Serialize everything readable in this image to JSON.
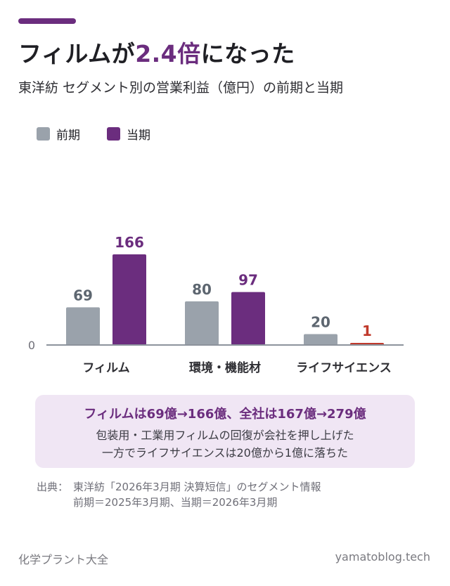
{
  "header": {
    "title_before": "フィルムが",
    "title_highlight": "2.4倍",
    "title_after": "になった",
    "subtitle": "東洋紡 セグメント別の営業利益（億円）の前期と当期"
  },
  "colors": {
    "prev": "#9aa2ab",
    "curr": "#6b2d7e",
    "negative_small": "#c0392b",
    "accent": "#6b2d7e",
    "note_bg": "#f0e6f4"
  },
  "chart_data": {
    "type": "bar",
    "title": "フィルムが2.4倍になった",
    "subtitle": "東洋紡 セグメント別の営業利益（億円）の前期と当期",
    "categories": [
      "フィルム",
      "環境・機能材",
      "ライフサイエンス"
    ],
    "series": [
      {
        "name": "前期",
        "values": [
          69,
          80,
          20
        ]
      },
      {
        "name": "当期",
        "values": [
          166,
          97,
          1
        ]
      }
    ],
    "y_zero_label": "0",
    "ylim": [
      0,
      166
    ],
    "grid": false,
    "legend": "top-left"
  },
  "note": {
    "headline": "フィルムは69億→166億、全社は167億→279億",
    "line1": "包装用・工業用フィルムの回復が会社を押し上げた",
    "line2": "一方でライフサイエンスは20億から1億に落ちた"
  },
  "source": {
    "label": "出典：",
    "line1": "東洋紡「2026年3月期 決算短信」のセグメント情報",
    "line2": "前期＝2025年3月期、当期＝2026年3月期"
  },
  "footer": {
    "left": "化学プラント大全",
    "right": "yamatoblog.tech"
  }
}
